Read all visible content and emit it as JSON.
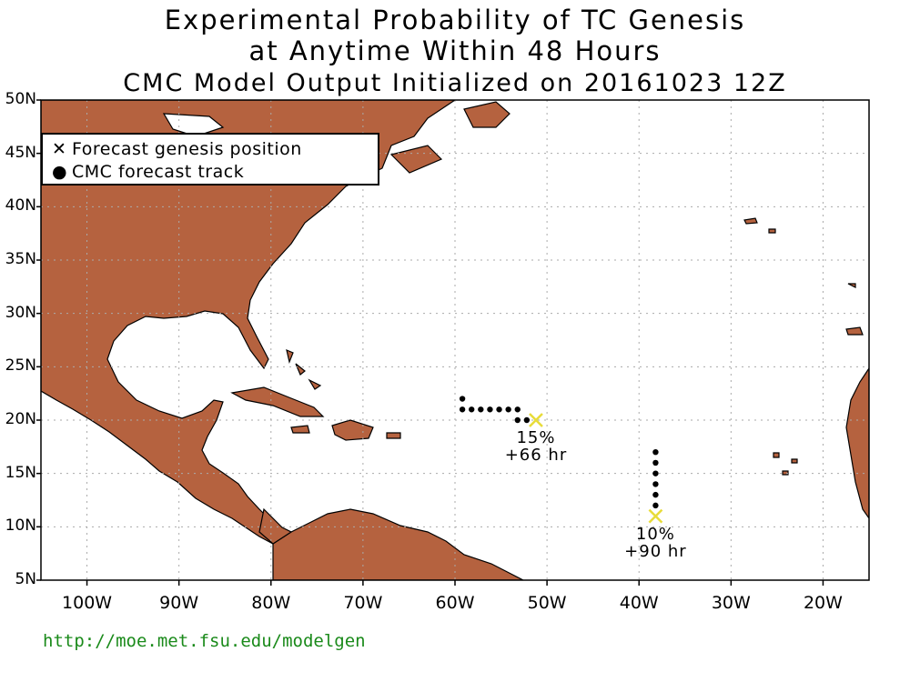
{
  "title": {
    "line1": "Experimental Probability of TC Genesis",
    "line2": "at Anytime Within 48 Hours",
    "line3": "CMC Model Output Initialized on 20161023 12Z"
  },
  "legend": {
    "genesis": "Forecast genesis position",
    "track": "CMC forecast track"
  },
  "footer_url": "http://moe.met.fsu.edu/modelgen",
  "colors": {
    "land": "#b5623f",
    "ocean": "#ffffff",
    "genesis_marker": "#e8dc3a",
    "track": "#000000",
    "url": "#1a8a1a"
  },
  "map": {
    "lon_range": [
      -105,
      -15
    ],
    "lat_range": [
      5,
      50
    ],
    "lat_ticks": [
      "50N",
      "45N",
      "40N",
      "35N",
      "30N",
      "25N",
      "20N",
      "15N",
      "10N",
      "5N"
    ],
    "lon_ticks": [
      "100W",
      "90W",
      "80W",
      "70W",
      "60W",
      "50W",
      "40W",
      "30W",
      "20W"
    ],
    "grid": "dotted"
  },
  "systems": [
    {
      "genesis": {
        "lon": -51.2,
        "lat": 20.0
      },
      "probability": "15%",
      "lead_time": "+66 hr",
      "track": [
        [
          -59.2,
          22
        ],
        [
          -59.2,
          21
        ],
        [
          -58.2,
          21
        ],
        [
          -57.2,
          21
        ],
        [
          -56.2,
          21
        ],
        [
          -55.2,
          21
        ],
        [
          -54.2,
          21
        ],
        [
          -53.2,
          21
        ],
        [
          -53.2,
          20
        ],
        [
          -52.2,
          20
        ]
      ]
    },
    {
      "genesis": {
        "lon": -38.2,
        "lat": 11.0
      },
      "probability": "10%",
      "lead_time": "+90 hr",
      "track": [
        [
          -38.2,
          17
        ],
        [
          -38.2,
          16
        ],
        [
          -38.2,
          15
        ],
        [
          -38.2,
          14
        ],
        [
          -38.2,
          13
        ],
        [
          -38.2,
          12
        ]
      ]
    }
  ]
}
